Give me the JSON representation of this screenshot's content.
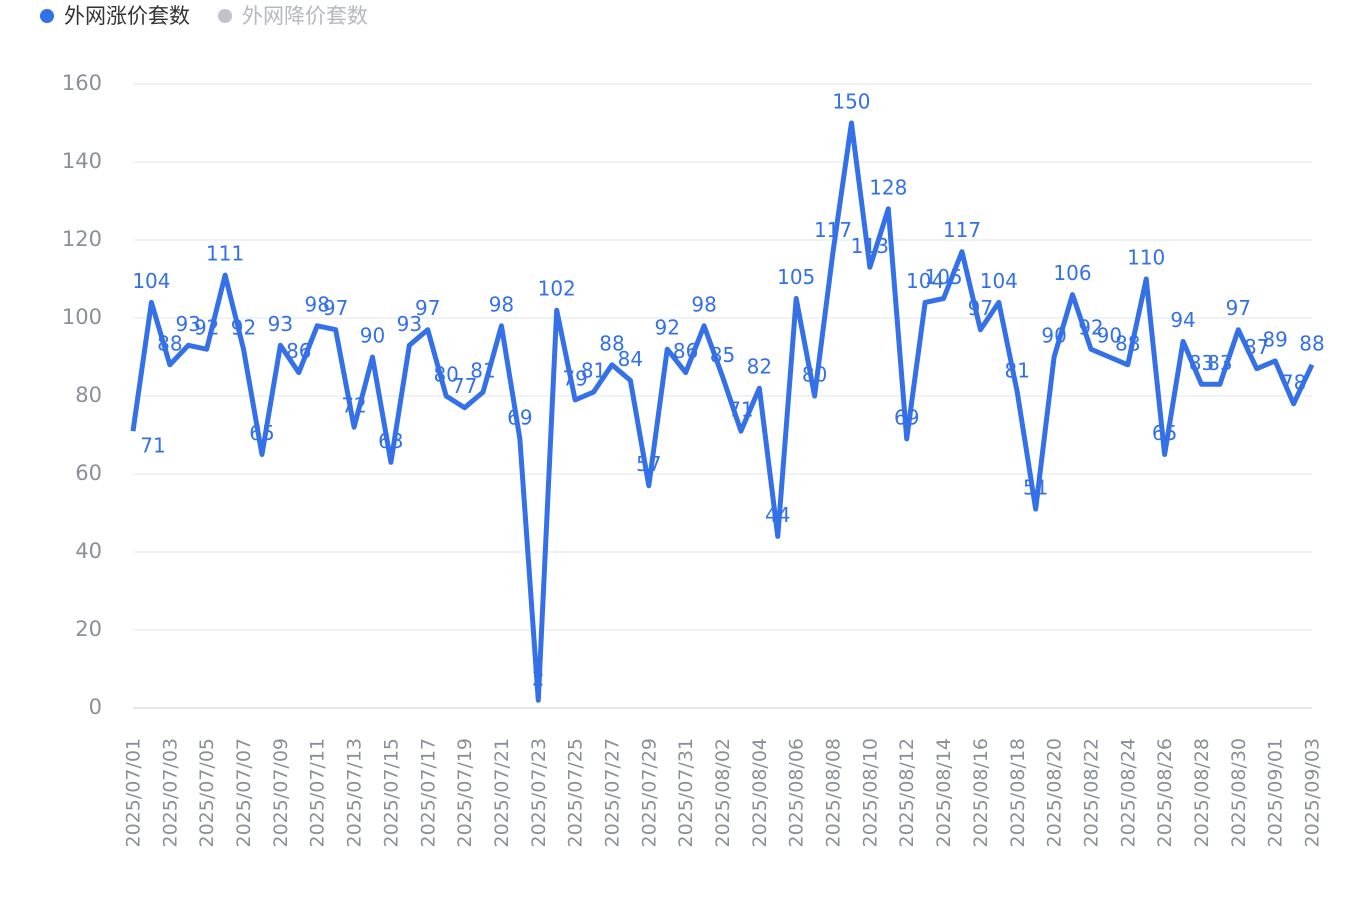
{
  "chart_data": {
    "type": "line",
    "legend": [
      {
        "name": "外网涨价套数",
        "color": "#3470e8"
      },
      {
        "name": "外网降价套数",
        "color": "#c0c3c9"
      }
    ],
    "categories": [
      "2025/07/01",
      null,
      "2025/07/03",
      null,
      "2025/07/05",
      null,
      "2025/07/07",
      null,
      "2025/07/09",
      null,
      "2025/07/11",
      null,
      "2025/07/13",
      null,
      "2025/07/15",
      null,
      "2025/07/17",
      null,
      "2025/07/19",
      null,
      "2025/07/21",
      null,
      "2025/07/23",
      null,
      "2025/07/25",
      null,
      "2025/07/27",
      null,
      "2025/07/29",
      null,
      "2025/07/31",
      null,
      "2025/08/02",
      null,
      "2025/08/04",
      null,
      "2025/08/06",
      null,
      "2025/08/08",
      null,
      "2025/08/10",
      null,
      "2025/08/12",
      null,
      "2025/08/14",
      null,
      "2025/08/16",
      null,
      "2025/08/18",
      null,
      "2025/08/20",
      null,
      "2025/08/22",
      null,
      "2025/08/24",
      null,
      "2025/08/26",
      null,
      "2025/08/28",
      null,
      "2025/08/30",
      null,
      "2025/09/01",
      null,
      "2025/09/03"
    ],
    "series": [
      {
        "name": "外网涨价套数",
        "color": "#3470e8",
        "values": [
          71,
          104,
          88,
          93,
          92,
          111,
          92,
          65,
          93,
          86,
          98,
          97,
          72,
          90,
          63,
          93,
          97,
          80,
          77,
          81,
          98,
          69,
          2,
          102,
          79,
          81,
          88,
          84,
          57,
          92,
          86,
          98,
          85,
          71,
          82,
          44,
          105,
          80,
          117,
          150,
          113,
          128,
          69,
          104,
          105,
          117,
          97,
          104,
          81,
          51,
          90,
          106,
          92,
          90,
          88,
          110,
          65,
          94,
          83,
          83,
          97,
          87,
          89,
          78,
          88
        ]
      }
    ],
    "ylim": [
      0,
      160
    ],
    "yticks": [
      0,
      20,
      40,
      60,
      80,
      100,
      120,
      140,
      160
    ],
    "grid": true
  }
}
